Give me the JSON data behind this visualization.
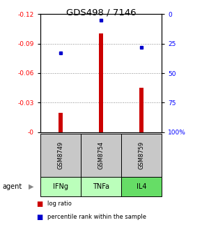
{
  "title": "GDS498 / 7146",
  "samples": [
    "IFNg",
    "TNFa",
    "IL4"
  ],
  "gsm_labels": [
    "GSM8749",
    "GSM8754",
    "GSM8759"
  ],
  "log_ratios": [
    -0.02,
    -0.1,
    -0.045
  ],
  "percentile_ranks": [
    33,
    5,
    28
  ],
  "ylim_left": [
    0.0,
    -0.12
  ],
  "ylim_right": [
    100,
    0
  ],
  "yticks_left": [
    0,
    -0.03,
    -0.06,
    -0.09,
    -0.12
  ],
  "ytick_labels_left": [
    "-0",
    "-0.03",
    "-0.06",
    "-0.09",
    "-0.12"
  ],
  "yticks_right": [
    100,
    75,
    50,
    25,
    0
  ],
  "ytick_labels_right": [
    "100%",
    "75",
    "50",
    "25",
    "0"
  ],
  "bar_color": "#cc0000",
  "percentile_color": "#0000cc",
  "grid_color": "#888888",
  "cell_gray": "#c8c8c8",
  "cell_green_ifng": "#bbffbb",
  "cell_green_tnfa": "#bbffbb",
  "cell_green_il4": "#66dd66",
  "bar_width": 0.12,
  "legend_items": [
    "log ratio",
    "percentile rank within the sample"
  ]
}
